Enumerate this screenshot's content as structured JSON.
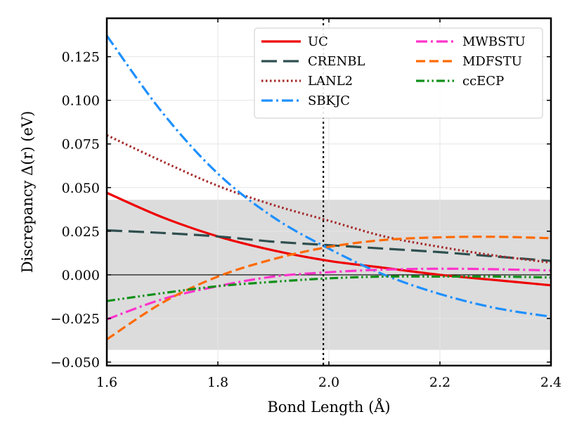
{
  "chart_data": {
    "type": "line",
    "title": "",
    "xlabel": "Bond Length (Å)",
    "ylabel": "Discrepancy Δ(r) (eV)",
    "xlim": [
      1.6,
      2.4
    ],
    "ylim": [
      -0.052,
      0.147
    ],
    "x_ticks": [
      1.6,
      1.8,
      2.0,
      2.2,
      2.4
    ],
    "x_tick_labels": [
      "1.6",
      "1.8",
      "2.0",
      "2.2",
      "2.4"
    ],
    "y_ticks": [
      -0.05,
      -0.025,
      0.0,
      0.025,
      0.05,
      0.075,
      0.1,
      0.125
    ],
    "y_tick_labels": [
      "−0.050",
      "−0.025",
      "0.000",
      "0.025",
      "0.050",
      "0.075",
      "0.100",
      "0.125"
    ],
    "grid": true,
    "legend_position": "top-right",
    "shaded_band": {
      "y_min": -0.043,
      "y_max": 0.043,
      "color": "#dcdcdc"
    },
    "zero_line": 0.0,
    "vertical_reference_x": 1.99,
    "series": [
      {
        "name": "UC",
        "color": "#ee0000",
        "dash": "solid",
        "x": [
          1.6,
          1.7,
          1.8,
          1.9,
          2.0,
          2.1,
          2.2,
          2.3,
          2.4
        ],
        "y": [
          0.047,
          0.033,
          0.022,
          0.014,
          0.008,
          0.004,
          0.0,
          -0.003,
          -0.006
        ]
      },
      {
        "name": "CRENBL",
        "color": "#2f4f4f",
        "dash": "long-dash",
        "x": [
          1.6,
          1.7,
          1.8,
          1.9,
          2.0,
          2.1,
          2.2,
          2.3,
          2.4
        ],
        "y": [
          0.0255,
          0.024,
          0.022,
          0.019,
          0.017,
          0.015,
          0.013,
          0.0105,
          0.008
        ]
      },
      {
        "name": "LANL2",
        "color": "#a52a2a",
        "dash": "dotted",
        "x": [
          1.6,
          1.7,
          1.8,
          1.9,
          2.0,
          2.1,
          2.2,
          2.3,
          2.4
        ],
        "y": [
          0.08,
          0.065,
          0.051,
          0.04,
          0.031,
          0.022,
          0.016,
          0.011,
          0.007
        ]
      },
      {
        "name": "SBKJC",
        "color": "#1e90ff",
        "dash": "dash-dot",
        "x": [
          1.6,
          1.7,
          1.8,
          1.9,
          2.0,
          2.1,
          2.2,
          2.3,
          2.4
        ],
        "y": [
          0.137,
          0.093,
          0.058,
          0.033,
          0.015,
          0.0,
          -0.011,
          -0.019,
          -0.024
        ]
      },
      {
        "name": "MWBSTU",
        "color": "#ff33cc",
        "dash": "dash-dot",
        "x": [
          1.6,
          1.7,
          1.8,
          1.9,
          2.0,
          2.1,
          2.2,
          2.3,
          2.4
        ],
        "y": [
          -0.0255,
          -0.014,
          -0.0065,
          -0.001,
          0.0015,
          0.003,
          0.0035,
          0.0032,
          0.0025
        ]
      },
      {
        "name": "MDFSTU",
        "color": "#ff6a00",
        "dash": "dashed",
        "x": [
          1.6,
          1.7,
          1.8,
          1.9,
          2.0,
          2.1,
          2.2,
          2.3,
          2.4
        ],
        "y": [
          -0.037,
          -0.016,
          -0.001,
          0.009,
          0.016,
          0.02,
          0.0215,
          0.0218,
          0.021
        ]
      },
      {
        "name": "ccECP",
        "color": "#11901a",
        "dash": "dash-dot-dot",
        "x": [
          1.6,
          1.7,
          1.8,
          1.9,
          2.0,
          2.1,
          2.2,
          2.3,
          2.4
        ],
        "y": [
          -0.015,
          -0.0105,
          -0.0065,
          -0.004,
          -0.002,
          -0.001,
          -0.001,
          -0.001,
          -0.0015
        ]
      }
    ]
  }
}
